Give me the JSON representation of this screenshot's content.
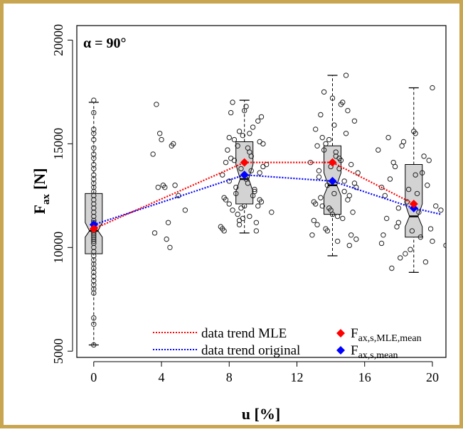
{
  "chart_data": {
    "type": "box-scatter",
    "annotation": "α = 90°",
    "xlabel": "u [%]",
    "ylabel_main": "F",
    "ylabel_sub": "ax",
    "ylabel_unit": "[N]",
    "xlim": [
      -1,
      20.8
    ],
    "ylim": [
      4700,
      20700
    ],
    "xticks": [
      0,
      4,
      8,
      12,
      16,
      20
    ],
    "yticks": [
      5000,
      10000,
      15000,
      20000
    ],
    "grid": false,
    "legend_position": "bottom-center",
    "legend": {
      "mle_line": "data trend MLE",
      "orig_line": "data trend original",
      "mle_point_main": "F",
      "mle_point_sub": "ax,s,MLE,mean",
      "orig_point_main": "F",
      "orig_point_sub": "ax,s,mean"
    },
    "colors": {
      "mle": "#ff0000",
      "original": "#0000ff",
      "box_fill": "#d3d3d3",
      "frame": "#c8a550"
    },
    "boxes": [
      {
        "x": 0,
        "whisker_low": 5300,
        "q1": 9700,
        "notch_low": 10500,
        "median": 10800,
        "notch_high": 11200,
        "q3": 12600,
        "whisker_high": 17000
      },
      {
        "x": 8.9,
        "whisker_low": 10700,
        "q1": 12100,
        "notch_low": 12700,
        "median": 13300,
        "notch_high": 14000,
        "q3": 15100,
        "whisker_high": 17100
      },
      {
        "x": 14.1,
        "whisker_low": 9600,
        "q1": 11600,
        "notch_low": 12500,
        "median": 13000,
        "notch_high": 13600,
        "q3": 14900,
        "whisker_high": 18300
      },
      {
        "x": 18.9,
        "whisker_low": 8800,
        "q1": 10500,
        "notch_low": 11000,
        "median": 11500,
        "notch_high": 12100,
        "q3": 14000,
        "whisker_high": 17700
      }
    ],
    "series": [
      {
        "name": "data trend MLE",
        "x": [
          0,
          8.9,
          14.1,
          18.9
        ],
        "y": [
          10900,
          14100,
          14100,
          12100
        ]
      },
      {
        "name": "data trend original",
        "x": [
          0,
          8.9,
          14.1,
          18.9,
          20.5
        ],
        "y": [
          11100,
          13500,
          13200,
          11900,
          11600
        ]
      }
    ],
    "mean_points": {
      "mle": {
        "x": [
          0,
          8.9,
          14.1,
          18.9
        ],
        "y": [
          10900,
          14100,
          14100,
          12100
        ]
      },
      "original": {
        "x": [
          0,
          8.9,
          14.1,
          18.9
        ],
        "y": [
          11100,
          13500,
          13200,
          11900
        ]
      }
    },
    "points": {
      "x": [
        0,
        0,
        0,
        0,
        0,
        0,
        0,
        0,
        0,
        0,
        0,
        0,
        0,
        0,
        0,
        0,
        0,
        0,
        0,
        0,
        0,
        0,
        0,
        0,
        0,
        0,
        0,
        0,
        0,
        0,
        0,
        0,
        0,
        0,
        0,
        0,
        0,
        0,
        0,
        0,
        0,
        0,
        0,
        0,
        0,
        0,
        0,
        0,
        3.5,
        3.6,
        3.7,
        3.8,
        3.9,
        4.0,
        4.1,
        4.2,
        4.3,
        4.4,
        4.5,
        4.6,
        4.7,
        4.8,
        5.0,
        5.4,
        7.5,
        7.6,
        7.7,
        7.8,
        7.9,
        8.0,
        8.1,
        8.2,
        8.3,
        8.4,
        8.5,
        8.6,
        8.7,
        8.8,
        8.9,
        9.0,
        9.1,
        9.2,
        9.3,
        9.4,
        9.5,
        9.6,
        9.7,
        9.8,
        9.9,
        10.0,
        10.2,
        10.5,
        7.6,
        7.8,
        8.0,
        8.2,
        8.4,
        8.6,
        8.8,
        9.0,
        9.2,
        9.4,
        9.6,
        9.8,
        10.0,
        7.7,
        8.1,
        8.5,
        8.9,
        9.3,
        9.7,
        8.3,
        8.7,
        9.1,
        9.5,
        9.9,
        8.0,
        8.6,
        9.2,
        9.8,
        12.8,
        12.9,
        13.0,
        13.1,
        13.2,
        13.3,
        13.4,
        13.5,
        13.6,
        13.7,
        13.8,
        13.9,
        14.0,
        14.1,
        14.2,
        14.3,
        14.4,
        14.5,
        14.6,
        14.7,
        14.8,
        14.9,
        15.0,
        15.1,
        15.2,
        15.3,
        15.4,
        15.5,
        15.6,
        13.0,
        13.2,
        13.4,
        13.6,
        13.8,
        14.0,
        14.2,
        14.4,
        14.6,
        14.8,
        15.0,
        15.2,
        15.4,
        13.1,
        13.5,
        13.9,
        14.3,
        14.7,
        15.1,
        15.5,
        13.3,
        13.7,
        14.1,
        14.5,
        14.9,
        16.8,
        17.0,
        17.2,
        17.4,
        17.6,
        17.8,
        18.0,
        18.2,
        18.4,
        18.6,
        18.8,
        19.0,
        19.2,
        19.4,
        19.6,
        19.8,
        20.0,
        20.2,
        20.5,
        17.1,
        17.5,
        17.9,
        18.3,
        18.7,
        19.1,
        19.5,
        19.9,
        17.3,
        17.7,
        18.1,
        18.5,
        18.9,
        19.3,
        19.7,
        17.0,
        18.0,
        19.0,
        20.0,
        20.8
      ],
      "y": [
        5300,
        6300,
        6600,
        7800,
        8000,
        8200,
        8400,
        8600,
        8800,
        9000,
        9200,
        9400,
        9600,
        9800,
        10000,
        10200,
        10300,
        10400,
        10500,
        10600,
        10700,
        10800,
        10900,
        11000,
        11100,
        11200,
        11300,
        11500,
        11700,
        11900,
        12100,
        12300,
        12500,
        12700,
        12900,
        13100,
        13300,
        13500,
        13800,
        14000,
        14300,
        14500,
        14800,
        15200,
        15500,
        15700,
        16500,
        17100,
        14500,
        10700,
        16900,
        12900,
        15500,
        15200,
        13000,
        12900,
        10400,
        11200,
        10000,
        14900,
        15000,
        13000,
        12500,
        11800,
        11000,
        13500,
        10800,
        12300,
        14700,
        15300,
        16500,
        11800,
        14200,
        12600,
        14900,
        11300,
        13800,
        15400,
        12000,
        16800,
        13100,
        11500,
        14400,
        15800,
        12800,
        11200,
        16100,
        13600,
        12200,
        15000,
        14000,
        11700,
        10900,
        14100,
        12100,
        17000,
        12900,
        15600,
        11400,
        13300,
        14600,
        12500,
        10800,
        15100,
        13900,
        12400,
        14300,
        11600,
        16600,
        13700,
        12000,
        15200,
        11900,
        14800,
        12700,
        16300,
        13200,
        11100,
        15500,
        12300,
        14100,
        10600,
        12200,
        15700,
        11100,
        13400,
        16400,
        12000,
        14700,
        10900,
        13000,
        15200,
        11800,
        17200,
        12600,
        14400,
        10300,
        13800,
        16900,
        11400,
        13200,
        15500,
        12300,
        10100,
        14000,
        11700,
        16100,
        12900,
        13600,
        11300,
        14900,
        12400,
        17500,
        10800,
        13900,
        15900,
        11500,
        14200,
        12700,
        16600,
        10600,
        13100,
        12100,
        15300,
        11900,
        14600,
        17000,
        12500,
        10400,
        13700,
        15000,
        11600,
        14300,
        18300,
        14700,
        10200,
        12500,
        15300,
        9000,
        13900,
        11200,
        14900,
        9700,
        12800,
        10800,
        15500,
        11700,
        13600,
        9300,
        14200,
        10300,
        12000,
        11800,
        10600,
        13300,
        11000,
        15100,
        9900,
        12600,
        14400,
        10900,
        11400,
        14100,
        9500,
        12200,
        15600,
        10500,
        13000,
        12900,
        11900,
        13500,
        17700,
        10100
      ]
    }
  }
}
